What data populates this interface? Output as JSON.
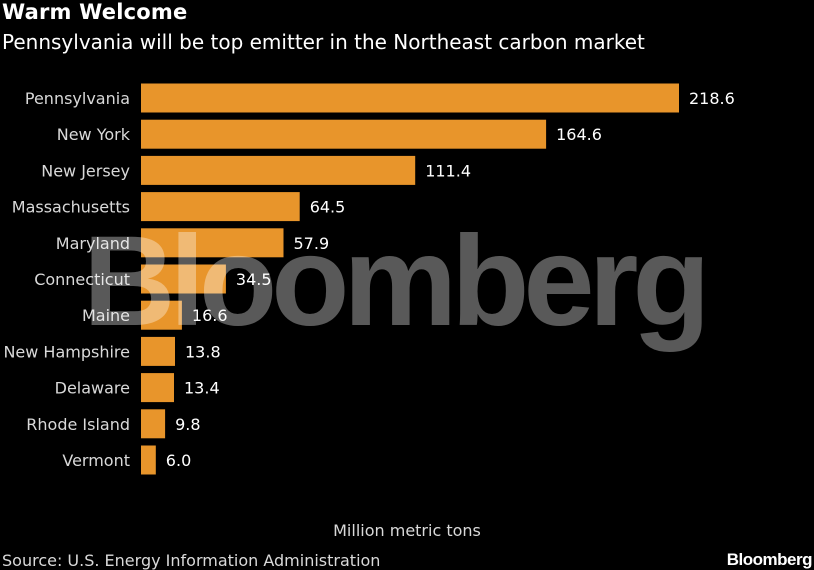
{
  "header": {
    "title": "Warm Welcome",
    "subtitle": "Pennsylvania will be top emitter in the Northeast carbon market"
  },
  "chart_data": {
    "type": "bar",
    "orientation": "horizontal",
    "title": "Warm Welcome",
    "subtitle": "Pennsylvania will be top emitter in the Northeast carbon market",
    "xlabel": "Million metric tons",
    "ylabel": "",
    "categories": [
      "Pennsylvania",
      "New York",
      "New Jersey",
      "Massachusetts",
      "Maryland",
      "Connecticut",
      "Maine",
      "New Hampshire",
      "Delaware",
      "Rhode Island",
      "Vermont"
    ],
    "values": [
      218.6,
      164.6,
      111.4,
      64.5,
      57.9,
      34.5,
      16.6,
      13.8,
      13.4,
      9.8,
      6.0
    ],
    "value_labels": [
      "218.6",
      "164.6",
      "111.4",
      "64.5",
      "57.9",
      "34.5",
      "16.6",
      "13.8",
      "13.4",
      "9.8",
      "6.0"
    ],
    "xlim": [
      0,
      218.6
    ],
    "grid": false,
    "legend": "none",
    "bar_color": "#e8952b"
  },
  "footer": {
    "source": "Source: U.S. Energy Information Administration",
    "brand": "Bloomberg"
  },
  "watermark": {
    "text": "Bloomberg"
  },
  "colors": {
    "background": "#000000",
    "text": "#ffffff",
    "bar": "#e8952b"
  }
}
